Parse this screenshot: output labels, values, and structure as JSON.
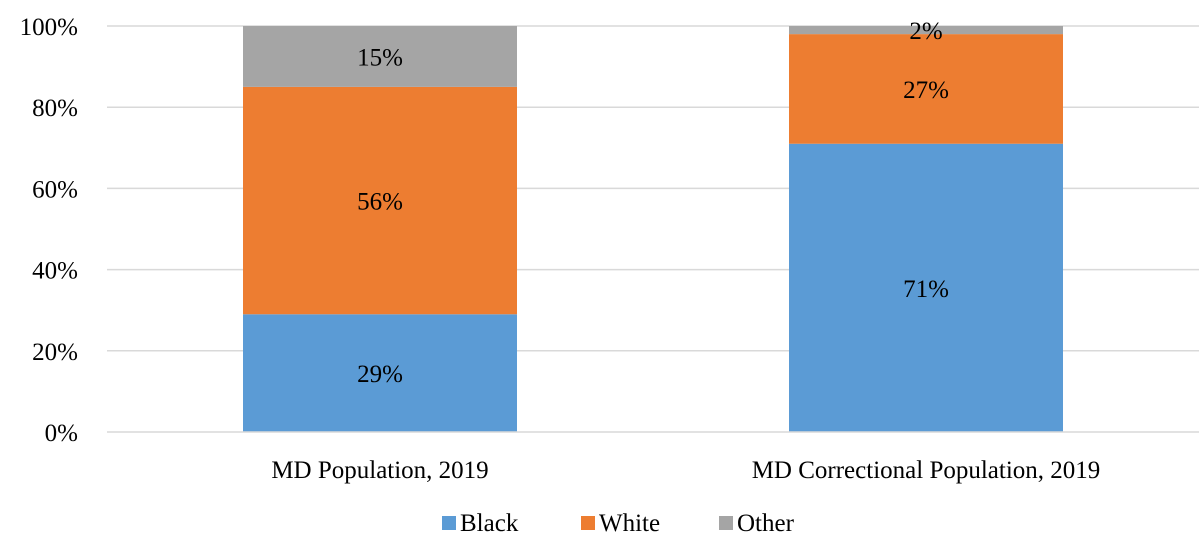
{
  "chart_data": {
    "type": "bar",
    "stacked": true,
    "title": "",
    "xlabel": "",
    "ylabel": "",
    "ylim": [
      0,
      100
    ],
    "yticks": [
      "0%",
      "20%",
      "40%",
      "60%",
      "80%",
      "100%"
    ],
    "grid": true,
    "legend_position": "bottom",
    "categories": [
      "MD Population, 2019",
      "MD Correctional Population, 2019"
    ],
    "series": [
      {
        "name": "Black",
        "color": "#5B9BD5",
        "values": [
          29,
          71
        ],
        "labels": [
          "29%",
          "71%"
        ]
      },
      {
        "name": "White",
        "color": "#ED7D31",
        "values": [
          56,
          27
        ],
        "labels": [
          "56%",
          "27%"
        ]
      },
      {
        "name": "Other",
        "color": "#A5A5A5",
        "values": [
          15,
          2
        ],
        "labels": [
          "15%",
          "2%"
        ]
      }
    ]
  }
}
